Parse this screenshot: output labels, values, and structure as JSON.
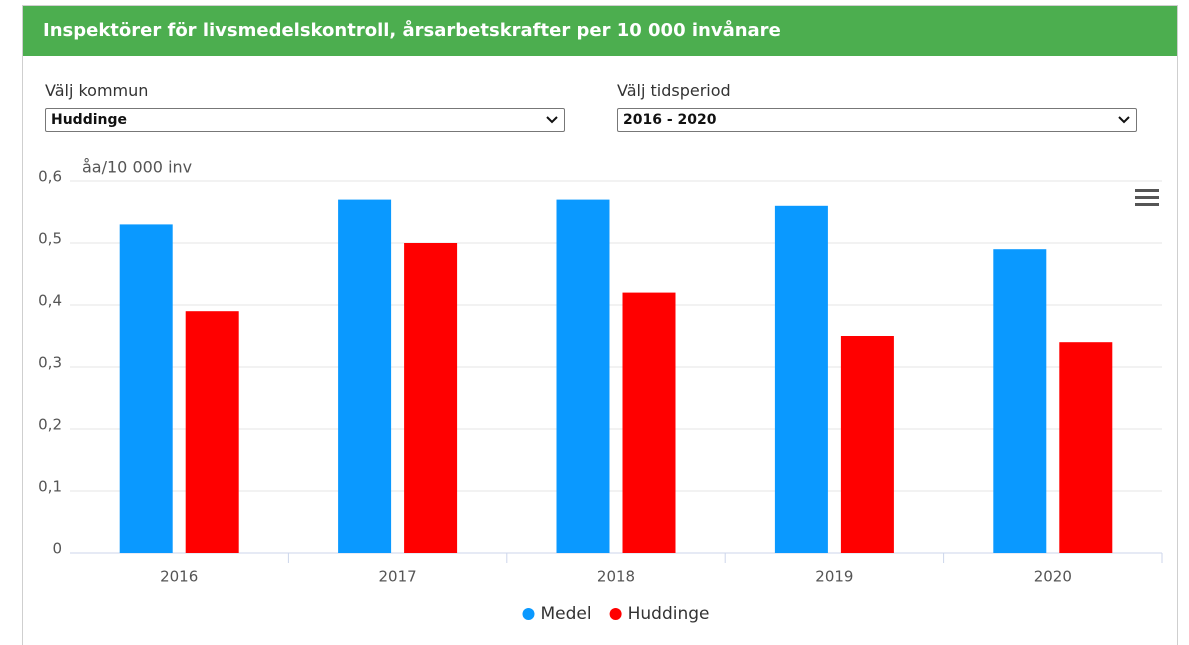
{
  "header": {
    "title": "Inspektörer för livsmedelskontroll, årsarbetskrafter per 10 000 invånare"
  },
  "filters": [
    {
      "label": "Välj kommun",
      "value": "Huddinge"
    },
    {
      "label": "Välj tidsperiod",
      "value": "2016 - 2020"
    }
  ],
  "chart_data": {
    "type": "bar",
    "y_label": "åa/10 000 inv",
    "categories": [
      "2016",
      "2017",
      "2018",
      "2019",
      "2020"
    ],
    "series": [
      {
        "name": "Medel",
        "color": "#0a99ff",
        "values": [
          0.53,
          0.57,
          0.57,
          0.56,
          0.49
        ]
      },
      {
        "name": "Huddinge",
        "color": "#ff0000",
        "values": [
          0.39,
          0.5,
          0.42,
          0.35,
          0.34
        ]
      }
    ],
    "ylim": [
      0,
      0.6
    ],
    "yticks": [
      0,
      {
        "value": 0.1,
        "label": "0,1"
      },
      {
        "value": 0.2,
        "label": "0,2"
      },
      {
        "value": 0.3,
        "label": "0,3"
      },
      {
        "value": 0.4,
        "label": "0,4"
      },
      {
        "value": 0.5,
        "label": "0,5"
      },
      {
        "value": 0.6,
        "label": "0,6"
      }
    ],
    "grid": true,
    "legend": "bottom"
  }
}
